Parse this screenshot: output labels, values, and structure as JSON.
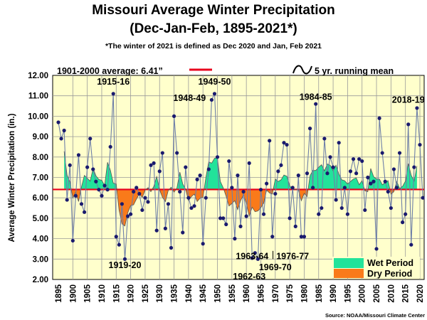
{
  "chart_data": {
    "type": "line",
    "title": "Missouri Average Winter Precipitation",
    "subtitle": "(Dec-Jan-Feb, 1895-2021*)",
    "note": "*The winter of 2021 is defined as Dec 2020 and Jan, Feb 2021",
    "ylabel": "Average Winter Precipitation (in.)",
    "xlabel": "",
    "ylim": [
      2.0,
      12.0
    ],
    "xlim": [
      1895,
      2020
    ],
    "yticks": [
      "2.00",
      "3.00",
      "4.00",
      "5.00",
      "6.00",
      "7.00",
      "8.00",
      "9.00",
      "10.00",
      "11.00",
      "12.00"
    ],
    "xticks": [
      "1895",
      "1900",
      "1905",
      "1910",
      "1915",
      "1920",
      "1925",
      "1930",
      "1935",
      "1940",
      "1945",
      "1950",
      "1955",
      "1960",
      "1965",
      "1970",
      "1975",
      "1980",
      "1985",
      "1990",
      "1995",
      "2000",
      "2005",
      "2010",
      "2015",
      "2020"
    ],
    "grid": true,
    "average": {
      "label": "1901-2000 average: 6.41”",
      "value": 6.41,
      "color": "#e8001c"
    },
    "running_mean_label": "5 yr. running mean",
    "legend": [
      {
        "name": "Wet Period",
        "color": "#22e39a"
      },
      {
        "name": "Dry Period",
        "color": "#f97a1a"
      }
    ],
    "source": "Source: NOAA/Missouri Climate Center",
    "series": [
      {
        "name": "Annual",
        "x": [
          1895,
          1896,
          1897,
          1898,
          1899,
          1900,
          1901,
          1902,
          1903,
          1904,
          1905,
          1906,
          1907,
          1908,
          1909,
          1910,
          1911,
          1912,
          1913,
          1914,
          1915,
          1916,
          1917,
          1918,
          1919,
          1920,
          1921,
          1922,
          1923,
          1924,
          1925,
          1926,
          1927,
          1928,
          1929,
          1930,
          1931,
          1932,
          1933,
          1934,
          1935,
          1936,
          1937,
          1938,
          1939,
          1940,
          1941,
          1942,
          1943,
          1944,
          1945,
          1946,
          1947,
          1948,
          1949,
          1950,
          1951,
          1952,
          1953,
          1954,
          1955,
          1956,
          1957,
          1958,
          1959,
          1960,
          1961,
          1962,
          1963,
          1964,
          1965,
          1966,
          1967,
          1968,
          1969,
          1970,
          1971,
          1972,
          1973,
          1974,
          1975,
          1976,
          1977,
          1978,
          1979,
          1980,
          1981,
          1982,
          1983,
          1984,
          1985,
          1986,
          1987,
          1988,
          1989,
          1990,
          1991,
          1992,
          1993,
          1994,
          1995,
          1996,
          1997,
          1998,
          1999,
          2000,
          2001,
          2002,
          2003,
          2004,
          2005,
          2006,
          2007,
          2008,
          2009,
          2010,
          2011,
          2012,
          2013,
          2014,
          2015,
          2016,
          2017,
          2018,
          2019,
          2020,
          2021
        ],
        "values": [
          9.7,
          8.9,
          9.3,
          5.9,
          7.6,
          3.9,
          6.1,
          8.1,
          5.7,
          5.3,
          7.5,
          8.9,
          7.4,
          6.8,
          6.4,
          6.1,
          6.6,
          6.4,
          8.5,
          11.1,
          4.1,
          3.7,
          5.7,
          3.0,
          5.1,
          5.2,
          6.3,
          6.5,
          6.2,
          5.4,
          6.0,
          5.8,
          7.6,
          7.7,
          4.4,
          7.3,
          8.2,
          4.5,
          5.7,
          3.55,
          10.0,
          8.2,
          6.3,
          4.3,
          7.5,
          6.0,
          5.5,
          5.6,
          6.9,
          7.1,
          3.75,
          6.0,
          7.4,
          10.8,
          11.1,
          8.0,
          5.0,
          5.0,
          4.7,
          7.8,
          6.5,
          4.0,
          7.1,
          4.6,
          6.3,
          5.1,
          7.7,
          3.05,
          3.3,
          3.0,
          6.4,
          5.2,
          6.7,
          8.8,
          4.1,
          6.2,
          7.3,
          7.6,
          8.7,
          8.6,
          5.0,
          6.5,
          4.6,
          7.1,
          4.1,
          4.1,
          7.2,
          9.4,
          6.5,
          10.6,
          5.2,
          5.5,
          8.9,
          7.2,
          8.0,
          7.5,
          5.9,
          8.7,
          5.5,
          6.5,
          5.2,
          7.3,
          7.9,
          7.2,
          7.9,
          7.8,
          5.4,
          7.0,
          6.7,
          6.8,
          3.5,
          9.9,
          8.2,
          6.8,
          6.3,
          5.5,
          7.4,
          6.5,
          8.2,
          4.8,
          5.2,
          9.6,
          3.7,
          7.5,
          10.4,
          8.6,
          6.0
        ]
      },
      {
        "name": "5 yr. running mean",
        "x": [
          1897,
          1898,
          1899,
          1900,
          1901,
          1902,
          1903,
          1904,
          1905,
          1906,
          1907,
          1908,
          1909,
          1910,
          1911,
          1912,
          1913,
          1914,
          1915,
          1916,
          1917,
          1918,
          1919,
          1920,
          1921,
          1922,
          1923,
          1924,
          1925,
          1926,
          1927,
          1928,
          1929,
          1930,
          1931,
          1932,
          1933,
          1934,
          1935,
          1936,
          1937,
          1938,
          1939,
          1940,
          1941,
          1942,
          1943,
          1944,
          1945,
          1946,
          1947,
          1948,
          1949,
          1950,
          1951,
          1952,
          1953,
          1954,
          1955,
          1956,
          1957,
          1958,
          1959,
          1960,
          1961,
          1962,
          1963,
          1964,
          1965,
          1966,
          1967,
          1968,
          1969,
          1970,
          1971,
          1972,
          1973,
          1974,
          1975,
          1976,
          1977,
          1978,
          1979,
          1980,
          1981,
          1982,
          1983,
          1984,
          1985,
          1986,
          1987,
          1988,
          1989,
          1990,
          1991,
          1992,
          1993,
          1994,
          1995,
          1996,
          1997,
          1998,
          1999,
          2000,
          2001,
          2002,
          2003,
          2004,
          2005,
          2006,
          2007,
          2008,
          2009,
          2010,
          2011,
          2012,
          2013,
          2014,
          2015,
          2016,
          2017,
          2018,
          2019
        ],
        "values": [
          8.28,
          7.12,
          6.78,
          6.0,
          6.28,
          5.82,
          6.54,
          7.1,
          6.96,
          6.82,
          7.44,
          7.08,
          6.9,
          6.86,
          6.6,
          7.74,
          7.34,
          6.72,
          6.68,
          5.4,
          4.72,
          4.62,
          5.26,
          5.62,
          5.66,
          5.94,
          6.2,
          6.02,
          6.38,
          6.5,
          6.3,
          6.56,
          7.04,
          6.4,
          6.02,
          5.82,
          6.36,
          6.52,
          6.28,
          6.48,
          7.26,
          6.68,
          6.42,
          5.86,
          6.06,
          6.18,
          5.82,
          5.98,
          6.04,
          7.0,
          7.76,
          7.7,
          7.94,
          7.96,
          6.8,
          6.5,
          6.08,
          5.6,
          5.72,
          5.86,
          5.42,
          5.86,
          6.14,
          5.74,
          5.1,
          5.54,
          5.32,
          5.36,
          5.52,
          5.74,
          6.38,
          6.24,
          6.18,
          6.92,
          6.8,
          6.88,
          7.12,
          7.06,
          6.6,
          6.38,
          6.42,
          6.38,
          5.86,
          6.22,
          6.06,
          7.08,
          7.34,
          7.34,
          7.5,
          7.62,
          7.32,
          7.66,
          7.6,
          7.32,
          7.6,
          7.16,
          6.88,
          6.84,
          6.68,
          6.8,
          6.92,
          6.98,
          6.64,
          6.84,
          6.34,
          6.3,
          7.44,
          7.04,
          6.92,
          6.92,
          6.64,
          6.74,
          6.84,
          6.18,
          6.3,
          6.8,
          6.46,
          6.56,
          6.82,
          7.68,
          7.1,
          6.82,
          7.56
        ]
      }
    ],
    "annotations": [
      {
        "text": "1915-16",
        "year": 1914
      },
      {
        "text": "1919-20",
        "year": 1918
      },
      {
        "text": "1948-49",
        "year": 1948
      },
      {
        "text": "1949-50",
        "year": 1949
      },
      {
        "text": "1962-63",
        "year": 1962
      },
      {
        "text": "1963-64",
        "year": 1963
      },
      {
        "text": "1969-70",
        "year": 1969
      },
      {
        "text": "1976-77",
        "year": 1976
      },
      {
        "text": "1984-85",
        "year": 1984
      },
      {
        "text": "2018-19",
        "year": 2018
      }
    ]
  }
}
